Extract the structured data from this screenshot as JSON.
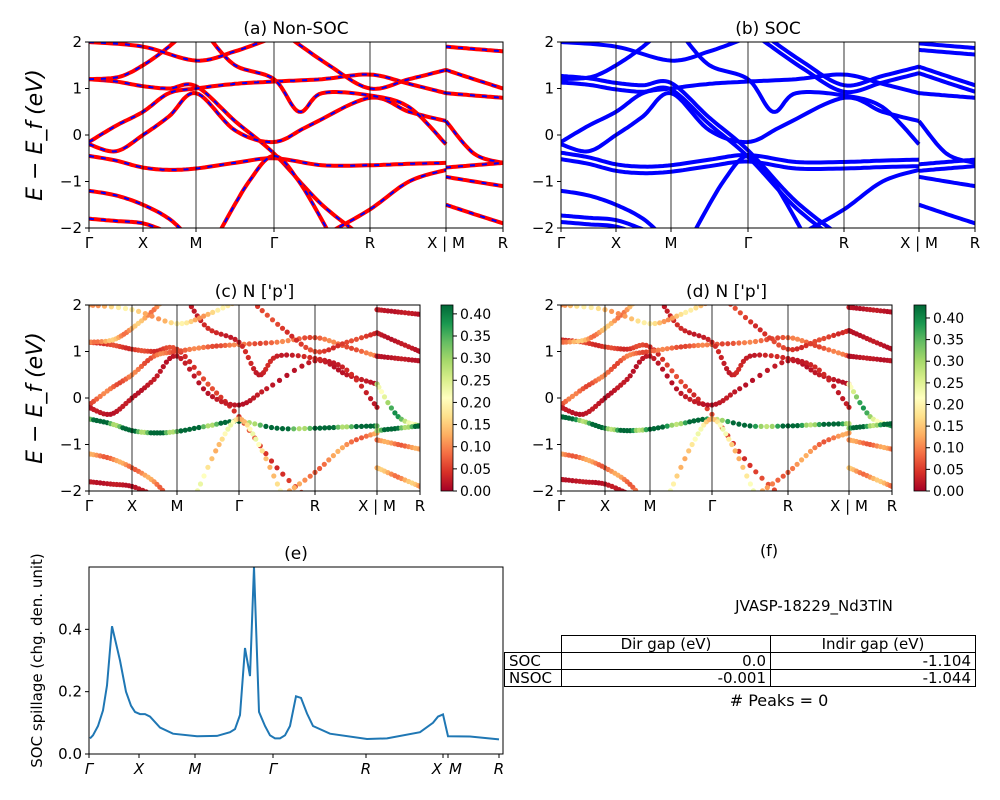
{
  "colors": {
    "nonsoc_line": "#ff0000",
    "nonsoc_dash": "#0000ff",
    "soc_line": "#0000ff",
    "spillage_line": "#1f77b4",
    "colormap": "RdYlGn"
  },
  "chart_data": [
    {
      "id": "a",
      "type": "line",
      "title": "(a) Non-SOC",
      "ylabel": "E − E_f (eV)",
      "ylim": [
        -2,
        2
      ],
      "yticks": [
        "−2",
        "−1",
        "0",
        "1",
        "2"
      ],
      "ytick_values": [
        -2,
        -1,
        0,
        1,
        2
      ],
      "xticks": [
        "Γ",
        "X",
        "M",
        "Γ",
        "R",
        "X | M",
        "R"
      ],
      "xtick_values": [
        0,
        0.54,
        1.07,
        1.85,
        2.81,
        3.57,
        4.14
      ],
      "xlim": [
        0,
        4.14
      ]
    },
    {
      "id": "b",
      "type": "line",
      "title": "(b) SOC",
      "ylim": [
        -2,
        2
      ],
      "yticks": [
        "−2",
        "−1",
        "0",
        "1",
        "2"
      ],
      "ytick_values": [
        -2,
        -1,
        0,
        1,
        2
      ],
      "xticks": [
        "Γ",
        "X",
        "M",
        "Γ",
        "R",
        "X | M",
        "R"
      ],
      "xtick_values": [
        0,
        0.54,
        1.07,
        1.85,
        2.81,
        3.57,
        4.14
      ],
      "xlim": [
        0,
        4.14
      ]
    },
    {
      "id": "c",
      "type": "scatter",
      "title": "(c)  N ['p']",
      "ylabel": "E − E_f (eV)",
      "ylim": [
        -2,
        2
      ],
      "yticks": [
        "−2",
        "−1",
        "0",
        "1",
        "2"
      ],
      "ytick_values": [
        -2,
        -1,
        0,
        1,
        2
      ],
      "xticks": [
        "Γ",
        "X",
        "M",
        "Γ",
        "R",
        "X | M",
        "R"
      ],
      "xtick_values": [
        0,
        0.54,
        1.07,
        1.85,
        2.81,
        3.57,
        4.14
      ],
      "xlim": [
        0,
        4.14
      ],
      "colorbar": {
        "range": [
          0,
          0.42
        ],
        "ticks": [
          "0.00",
          "0.05",
          "0.10",
          "0.15",
          "0.20",
          "0.25",
          "0.30",
          "0.35",
          "0.40"
        ],
        "tick_values": [
          0,
          0.05,
          0.1,
          0.15,
          0.2,
          0.25,
          0.3,
          0.35,
          0.4
        ]
      }
    },
    {
      "id": "d",
      "type": "scatter",
      "title": "(d) N ['p']",
      "ylim": [
        -2,
        2
      ],
      "yticks": [
        "−2",
        "−1",
        "0",
        "1",
        "2"
      ],
      "ytick_values": [
        -2,
        -1,
        0,
        1,
        2
      ],
      "xticks": [
        "Γ",
        "X",
        "M",
        "Γ",
        "R",
        "X | M",
        "R"
      ],
      "xtick_values": [
        0,
        0.54,
        1.07,
        1.85,
        2.81,
        3.57,
        4.14
      ],
      "xlim": [
        0,
        4.14
      ],
      "colorbar": {
        "range": [
          0,
          0.43
        ],
        "ticks": [
          "0.00",
          "0.05",
          "0.10",
          "0.15",
          "0.20",
          "0.25",
          "0.30",
          "0.35",
          "0.40"
        ],
        "tick_values": [
          0,
          0.05,
          0.1,
          0.15,
          0.2,
          0.25,
          0.3,
          0.35,
          0.4
        ]
      }
    },
    {
      "id": "e",
      "type": "line",
      "title": "(e)",
      "ylabel": "SOC spillage (chg. den. unit)",
      "ylim": [
        0,
        0.6
      ],
      "xlim": [
        0,
        4.14
      ],
      "yticks": [
        "0.0",
        "0.2",
        "0.4"
      ],
      "ytick_values": [
        0,
        0.2,
        0.4
      ],
      "xticks": [
        "Γ",
        "X",
        "M",
        "Γ",
        "R",
        "X",
        "M",
        "R"
      ],
      "xtick_values": [
        0,
        0.5,
        1.06,
        1.84,
        2.77,
        3.54,
        3.59,
        4.1
      ],
      "x": [
        0.01,
        0.04,
        0.09,
        0.14,
        0.18,
        0.23,
        0.31,
        0.37,
        0.42,
        0.46,
        0.51,
        0.56,
        0.61,
        0.71,
        0.84,
        1.08,
        1.28,
        1.41,
        1.46,
        1.51,
        1.56,
        1.61,
        1.65,
        1.7,
        1.76,
        1.81,
        1.86,
        1.91,
        1.96,
        2.01,
        2.07,
        2.12,
        2.18,
        2.24,
        2.41,
        2.78,
        2.98,
        3.31,
        3.44,
        3.49,
        3.54,
        3.59,
        3.81,
        4.1
      ],
      "y": [
        0.05,
        0.06,
        0.09,
        0.14,
        0.22,
        0.41,
        0.3,
        0.2,
        0.155,
        0.135,
        0.128,
        0.128,
        0.12,
        0.085,
        0.065,
        0.057,
        0.058,
        0.07,
        0.08,
        0.125,
        0.34,
        0.25,
        0.6,
        0.135,
        0.09,
        0.06,
        0.05,
        0.05,
        0.06,
        0.09,
        0.185,
        0.18,
        0.13,
        0.09,
        0.065,
        0.048,
        0.05,
        0.07,
        0.1,
        0.12,
        0.127,
        0.057,
        0.056,
        0.047
      ]
    }
  ],
  "bands": [
    {
      "pts": [
        [
          0,
          1.2
        ],
        [
          0.27,
          1.15
        ],
        [
          0.54,
          1.05
        ],
        [
          0.8,
          1.0
        ],
        [
          1.07,
          1.05
        ],
        [
          1.46,
          0.3
        ],
        [
          1.85,
          -0.4
        ],
        [
          2.33,
          -1.5
        ],
        [
          2.81,
          -2.3
        ]
      ],
      "w": 0.05
    },
    {
      "pts": [
        [
          0,
          1.2
        ],
        [
          0.3,
          1.25
        ],
        [
          0.54,
          1.5
        ],
        [
          0.8,
          1.9
        ],
        [
          1.0,
          2.3
        ]
      ],
      "w": 0.12
    },
    {
      "pts": [
        [
          0,
          -0.15
        ],
        [
          0.27,
          0.2
        ],
        [
          0.54,
          0.5
        ],
        [
          0.8,
          0.9
        ],
        [
          1.07,
          1.0
        ],
        [
          1.46,
          1.1
        ],
        [
          1.85,
          1.15
        ],
        [
          2.33,
          1.2
        ],
        [
          2.81,
          1.3
        ],
        [
          3.2,
          1.1
        ],
        [
          3.57,
          0.9
        ]
      ],
      "w": 0.08
    },
    {
      "pts": [
        [
          0,
          -0.45
        ],
        [
          0.27,
          -0.55
        ],
        [
          0.54,
          -0.7
        ],
        [
          0.8,
          -0.75
        ],
        [
          1.07,
          -0.72
        ],
        [
          1.46,
          -0.6
        ],
        [
          1.85,
          -0.5
        ],
        [
          2.33,
          -0.65
        ],
        [
          2.81,
          -0.65
        ],
        [
          3.2,
          -0.62
        ],
        [
          3.57,
          -0.6
        ]
      ],
      "w": 0.4
    },
    {
      "pts": [
        [
          0,
          -0.2
        ],
        [
          0.27,
          -0.35
        ],
        [
          0.54,
          0.0
        ],
        [
          0.8,
          0.4
        ],
        [
          1.07,
          0.9
        ],
        [
          1.46,
          0.1
        ],
        [
          1.85,
          -0.15
        ],
        [
          2.2,
          0.2
        ],
        [
          2.81,
          0.8
        ],
        [
          3.2,
          0.5
        ],
        [
          3.57,
          0.3
        ]
      ],
      "w": 0.02
    },
    {
      "pts": [
        [
          0,
          -1.2
        ],
        [
          0.27,
          -1.3
        ],
        [
          0.54,
          -1.5
        ],
        [
          0.8,
          -1.8
        ],
        [
          1.0,
          -2.2
        ]
      ],
      "w": 0.1
    },
    {
      "pts": [
        [
          0,
          -1.8
        ],
        [
          0.27,
          -1.85
        ],
        [
          0.54,
          -1.9
        ],
        [
          0.8,
          -2.1
        ]
      ],
      "w": 0.02
    },
    {
      "pts": [
        [
          1.2,
          2.1
        ],
        [
          1.46,
          1.5
        ],
        [
          1.85,
          1.2
        ],
        [
          2.1,
          0.5
        ],
        [
          2.33,
          0.9
        ],
        [
          2.81,
          0.85
        ],
        [
          3.2,
          0.6
        ],
        [
          3.57,
          -0.2
        ]
      ],
      "w": 0.03
    },
    {
      "pts": [
        [
          0,
          2.0
        ],
        [
          0.54,
          1.9
        ],
        [
          1.07,
          1.6
        ],
        [
          1.46,
          1.8
        ],
        [
          1.85,
          2.1
        ]
      ],
      "w": 0.15
    },
    {
      "pts": [
        [
          2.0,
          2.1
        ],
        [
          2.4,
          1.5
        ],
        [
          2.81,
          1.0
        ],
        [
          3.2,
          1.2
        ],
        [
          3.57,
          1.4
        ]
      ],
      "w": 0.05
    },
    {
      "pts": [
        [
          2.4,
          -2.1
        ],
        [
          2.81,
          -1.6
        ],
        [
          3.2,
          -1.0
        ],
        [
          3.57,
          -0.75
        ]
      ],
      "w": 0.1
    },
    {
      "pts": [
        [
          1.3,
          -2.1
        ],
        [
          1.6,
          -1.0
        ],
        [
          1.85,
          -0.45
        ],
        [
          2.1,
          -1.0
        ],
        [
          2.4,
          -2.1
        ]
      ],
      "w": 0.18
    },
    {
      "pts": [
        [
          3.57,
          1.4
        ],
        [
          3.85,
          1.2
        ],
        [
          4.14,
          1.0
        ]
      ],
      "w": 0.02
    },
    {
      "pts": [
        [
          3.57,
          0.9
        ],
        [
          3.85,
          0.85
        ],
        [
          4.14,
          0.8
        ]
      ],
      "w": 0.02
    },
    {
      "pts": [
        [
          3.57,
          0.3
        ],
        [
          3.85,
          -0.4
        ],
        [
          4.14,
          -0.6
        ]
      ],
      "w": 0.3
    },
    {
      "pts": [
        [
          3.57,
          -0.7
        ],
        [
          3.85,
          -0.65
        ],
        [
          4.14,
          -0.6
        ]
      ],
      "w": 0.4
    },
    {
      "pts": [
        [
          3.57,
          -0.9
        ],
        [
          3.85,
          -1.0
        ],
        [
          4.14,
          -1.1
        ]
      ],
      "w": 0.1
    },
    {
      "pts": [
        [
          3.57,
          -1.5
        ],
        [
          3.85,
          -1.7
        ],
        [
          4.14,
          -1.9
        ]
      ],
      "w": 0.12
    },
    {
      "pts": [
        [
          3.57,
          1.9
        ],
        [
          3.85,
          1.85
        ],
        [
          4.14,
          1.8
        ]
      ],
      "w": 0.02
    }
  ],
  "panel_f": {
    "title": "(f)",
    "material": "JVASP-18229_Nd3TlN",
    "table": {
      "columns": [
        "Dir gap (eV)",
        "Indir gap (eV)"
      ],
      "rows": [
        {
          "label": "SOC",
          "dir": "0.0",
          "indir": "-1.104"
        },
        {
          "label": "NSOC",
          "dir": "-0.001",
          "indir": "-1.044"
        }
      ]
    },
    "peaks": "# Peaks = 0"
  }
}
